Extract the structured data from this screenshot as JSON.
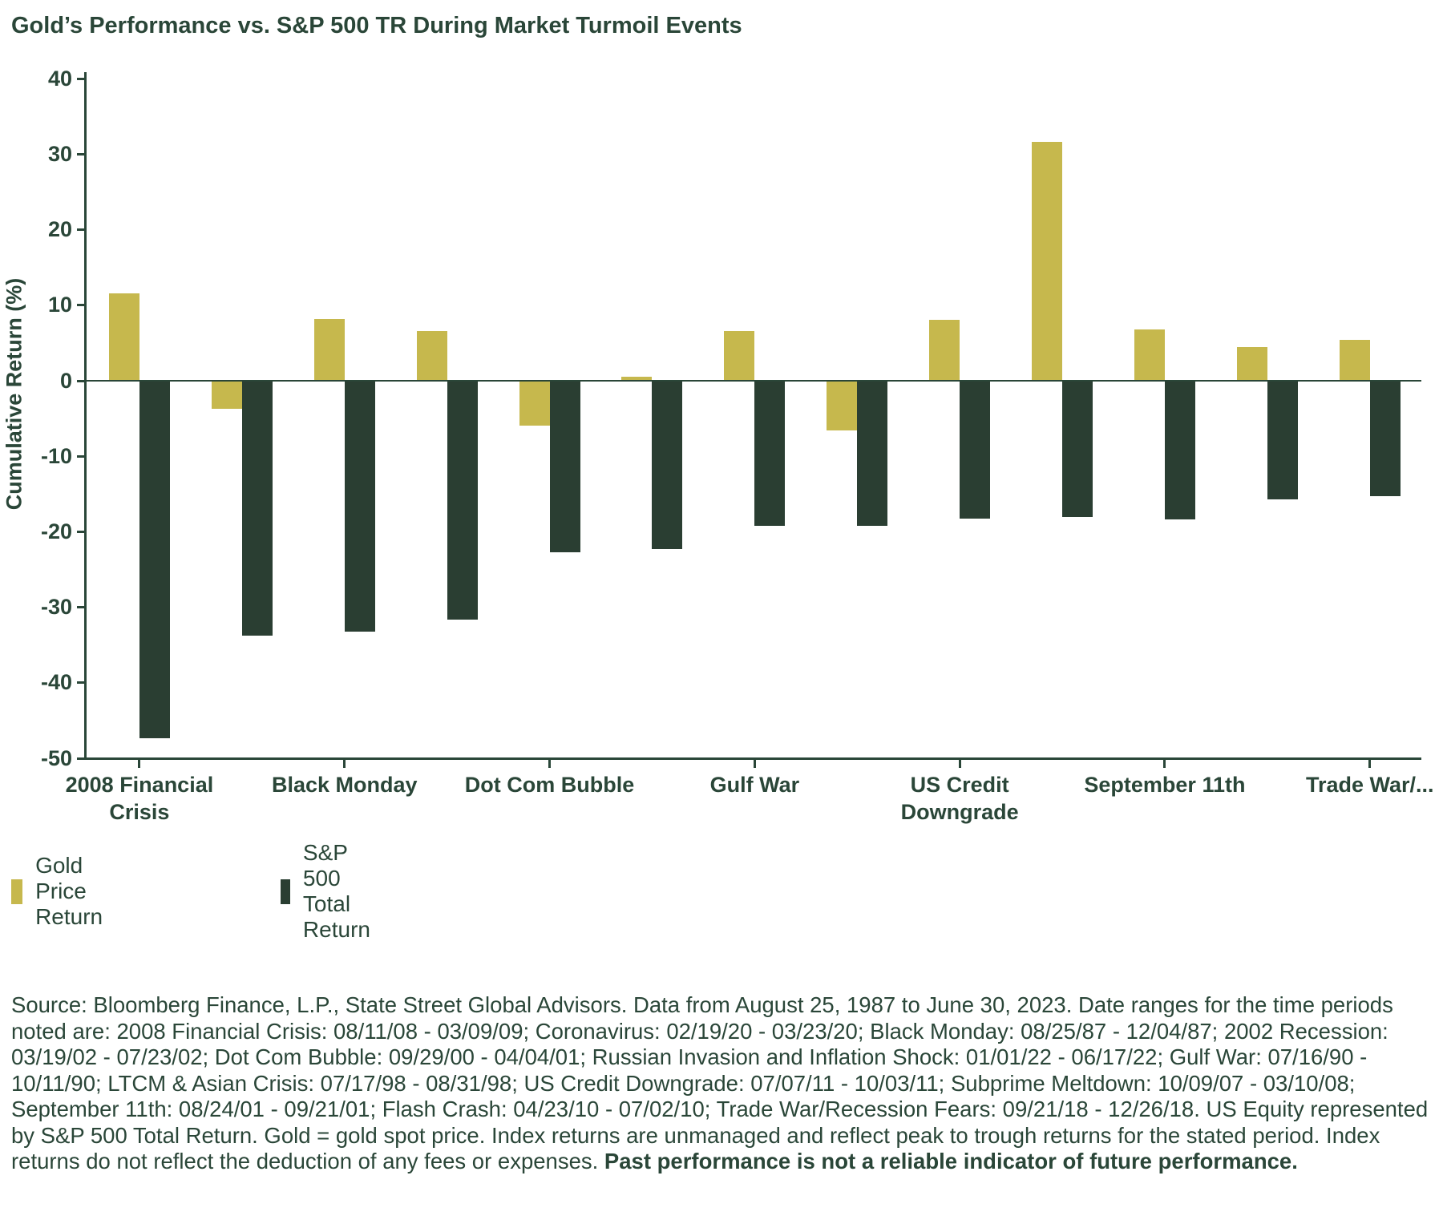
{
  "title": "Gold’s Performance vs. S&P 500 TR During Market Turmoil Events",
  "colors": {
    "gold": "#C6B84D",
    "dark_green": "#2A3E32",
    "text_green": "#2A4638"
  },
  "chart_data": {
    "type": "bar",
    "title": "Gold’s Performance vs. S&P 500 TR During Market Turmoil Events",
    "ylabel": "Cumulative Return (%)",
    "xlabel": "",
    "ylim": [
      -50,
      40
    ],
    "y_ticks": [
      40,
      30,
      20,
      10,
      0,
      -10,
      -20,
      -30,
      -40,
      -50
    ],
    "grid": false,
    "legend_position": "bottom-left",
    "categories": [
      "2008 Financial Crisis",
      "Coronavirus",
      "Black Monday",
      "2002 Recession",
      "Dot Com Bubble",
      "Russian Invasion and Inflation Shock",
      "Gulf War",
      "LTCM & Asian Crisis",
      "US Credit Downgrade",
      "Subprime Meltdown",
      "September 11th",
      "Flash Crash",
      "Trade War/Recession Fears"
    ],
    "shown_x_labels": [
      {
        "index": 0,
        "text": "2008 Financial Crisis"
      },
      {
        "index": 2,
        "text": "Black Monday"
      },
      {
        "index": 4,
        "text": "Dot Com Bubble"
      },
      {
        "index": 6,
        "text": "Gulf War"
      },
      {
        "index": 8,
        "text": "US Credit Downgrade"
      },
      {
        "index": 10,
        "text": "September 11th"
      },
      {
        "index": 12,
        "text": "Trade War/..."
      }
    ],
    "series": [
      {
        "name": "Gold Price Return",
        "color": "#C6B84D",
        "values": [
          11.6,
          -3.7,
          8.2,
          6.6,
          -5.9,
          0.5,
          6.6,
          -6.6,
          8.1,
          31.6,
          6.8,
          4.5,
          5.4
        ]
      },
      {
        "name": "S&P 500 Total Return",
        "color": "#2A3E32",
        "values": [
          -47.3,
          -33.8,
          -33.2,
          -31.6,
          -22.7,
          -22.3,
          -19.2,
          -19.2,
          -18.3,
          -18.0,
          -18.4,
          -15.7,
          -15.3
        ]
      }
    ]
  },
  "legend": {
    "gold_label": "Gold Price Return",
    "sp500_label": "S&P 500 Total Return"
  },
  "footer": {
    "text_normal": "Source: Bloomberg Finance, L.P., State Street Global Advisors. Data from August 25, 1987 to June 30, 2023. Date ranges for the time periods noted are: 2008 Financial Crisis: 08/11/08 - 03/09/09; Coronavirus: 02/19/20 - 03/23/20; Black Monday: 08/25/87 - 12/04/87; 2002 Recession: 03/19/02 - 07/23/02; Dot Com Bubble: 09/29/00 - 04/04/01; Russian Invasion and Inflation Shock: 01/01/22 - 06/17/22; Gulf War: 07/16/90 - 10/11/90; LTCM & Asian Crisis: 07/17/98 - 08/31/98; US Credit Downgrade: 07/07/11 - 10/03/11; Subprime Meltdown: 10/09/07 - 03/10/08; September 11th: 08/24/01 - 09/21/01; Flash Crash: 04/23/10 - 07/02/10; Trade War/Recession Fears: 09/21/18 - 12/26/18. US Equity represented by S&P 500 Total Return. Gold = gold spot price. Index returns are unmanaged and reflect peak to trough returns for the stated period. Index returns do not reflect the deduction of any fees or expenses. ",
    "text_bold": "Past performance is not a reliable indicator of future performance."
  }
}
